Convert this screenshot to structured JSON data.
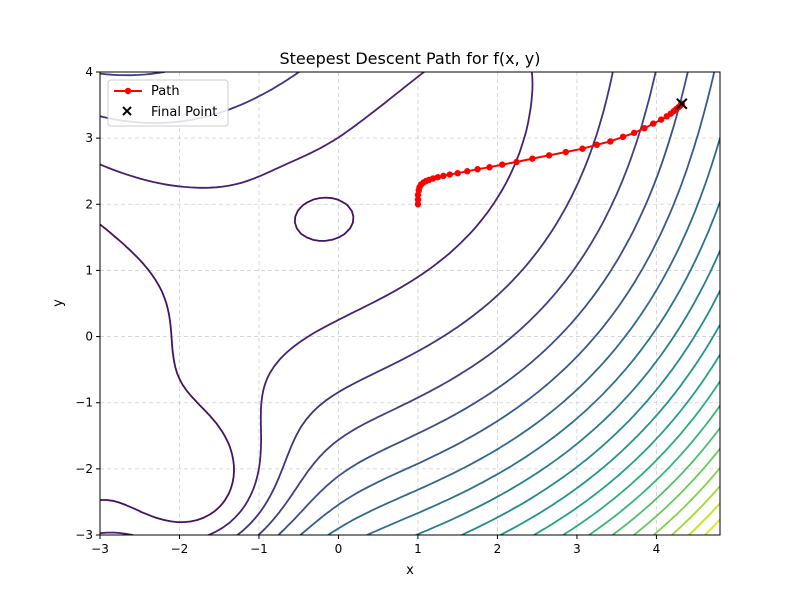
{
  "chart_data": {
    "type": "line",
    "title": "Steepest Descent Path for f(x, y)",
    "xlabel": "x",
    "ylabel": "y",
    "xlim": [
      -3,
      4.8
    ],
    "ylim": [
      -3,
      4
    ],
    "xticks": [
      -3,
      -2,
      -1,
      0,
      1,
      2,
      3,
      4
    ],
    "yticks": [
      -3,
      -2,
      -1,
      0,
      1,
      2,
      3,
      4
    ],
    "xtick_labels": [
      "−3",
      "−2",
      "−1",
      "0",
      "1",
      "2",
      "3",
      "4"
    ],
    "ytick_labels": [
      "−3",
      "−2",
      "−1",
      "0",
      "1",
      "2",
      "3",
      "4"
    ],
    "grid": true,
    "legend": {
      "placement": "top-left",
      "entries": [
        "Path",
        "Final Point"
      ]
    },
    "background_contours": {
      "colormap": "viridis",
      "line_count": 20
    },
    "series": [
      {
        "name": "Path",
        "color": "#ff0000",
        "marker": "circle",
        "x": [
          1.0,
          1.0,
          1.0,
          1.01,
          1.02,
          1.04,
          1.07,
          1.1,
          1.14,
          1.19,
          1.25,
          1.32,
          1.4,
          1.5,
          1.62,
          1.75,
          1.9,
          2.06,
          2.24,
          2.44,
          2.65,
          2.86,
          3.07,
          3.25,
          3.42,
          3.58,
          3.72,
          3.85,
          3.96,
          4.06,
          4.13,
          4.18,
          4.22,
          4.25,
          4.28,
          4.3,
          4.31,
          4.32
        ],
        "y": [
          2.0,
          2.07,
          2.14,
          2.21,
          2.26,
          2.3,
          2.33,
          2.35,
          2.37,
          2.39,
          2.41,
          2.43,
          2.45,
          2.47,
          2.5,
          2.53,
          2.56,
          2.6,
          2.64,
          2.69,
          2.74,
          2.79,
          2.84,
          2.9,
          2.95,
          3.02,
          3.08,
          3.15,
          3.22,
          3.28,
          3.33,
          3.37,
          3.41,
          3.44,
          3.47,
          3.49,
          3.51,
          3.52
        ]
      }
    ],
    "final_point": {
      "name": "Final Point",
      "x": 4.32,
      "y": 3.52,
      "marker": "x",
      "color": "#000000"
    }
  }
}
